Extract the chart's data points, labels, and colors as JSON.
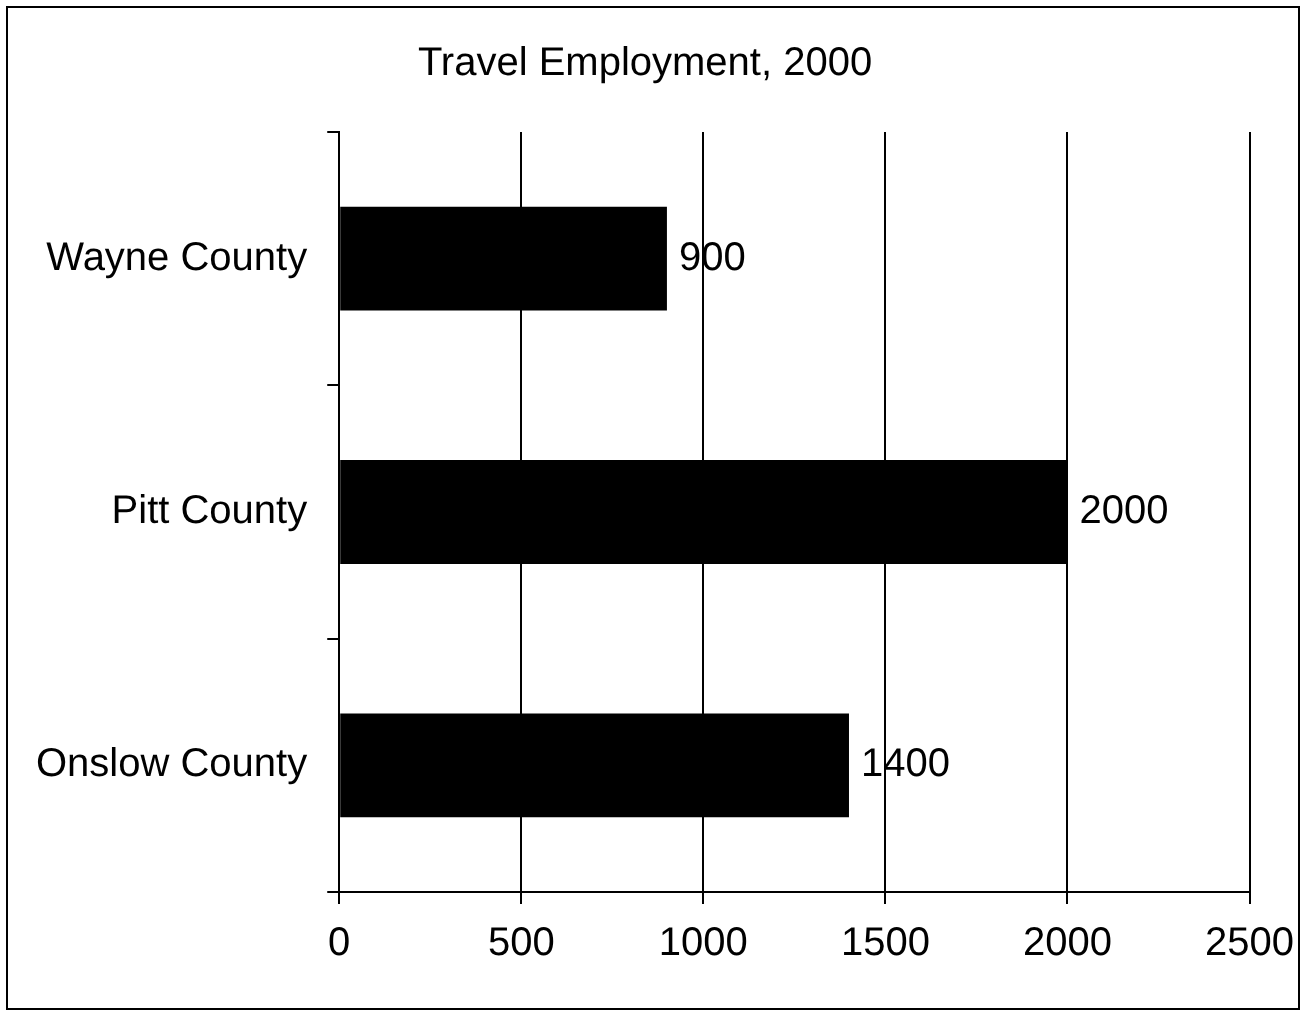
{
  "chart_data": {
    "type": "bar",
    "orientation": "horizontal",
    "title": "Travel Employment, 2000",
    "categories": [
      "Wayne County",
      "Pitt County",
      "Onslow County"
    ],
    "values": [
      900,
      2000,
      1400
    ],
    "color": "#000000",
    "xlim": [
      0,
      2500
    ],
    "xticks": [
      0,
      500,
      1000,
      1500,
      2000,
      2500
    ],
    "grid": "x",
    "data_labels": true
  }
}
